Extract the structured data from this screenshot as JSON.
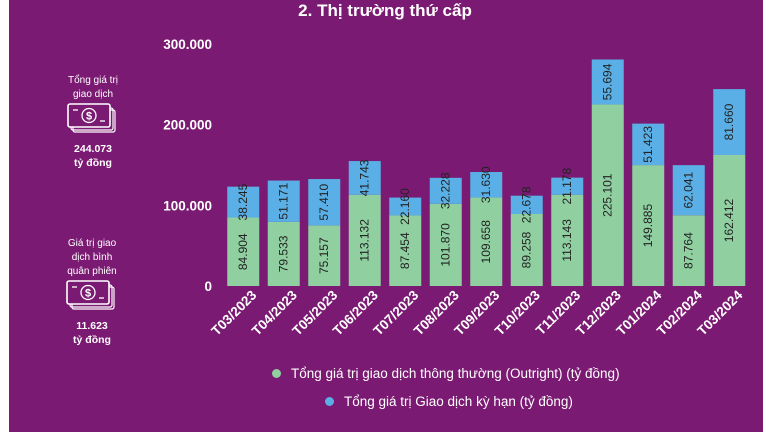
{
  "title": "2. Thị trường thứ cấp",
  "side_stats": [
    {
      "label_lines": [
        "Tổng giá trị",
        "giao dịch"
      ],
      "value": "244.073",
      "unit": "tỷ đồng",
      "icon": "money-icon"
    },
    {
      "label_lines": [
        "Giá trị giao",
        "dịch bình",
        "quân phiên"
      ],
      "value": "11.623",
      "unit": "tỷ đồng",
      "icon": "money-icon"
    }
  ],
  "colors": {
    "background": "#7b1a72",
    "outright": "#8fcfa0",
    "forward": "#5ab0e6"
  },
  "chart_data": {
    "type": "bar",
    "stacked": true,
    "categories": [
      "T03/2023",
      "T04/2023",
      "T05/2023",
      "T06/2023",
      "T07/2023",
      "T08/2023",
      "T09/2023",
      "T10/2023",
      "T11/2023",
      "T12/2023",
      "T01/2024",
      "T02/2024",
      "T03/2024"
    ],
    "series": [
      {
        "name": "Tổng giá trị giao dịch thông thường (Outright) (tỷ đồng)",
        "values": [
          84904,
          79533,
          75157,
          113132,
          87454,
          101870,
          109658,
          89258,
          113143,
          225101,
          149885,
          87764,
          162412
        ],
        "labels": [
          "84.904",
          "79.533",
          "75.157",
          "113.132",
          "87.454",
          "101.870",
          "109.658",
          "89.258",
          "113.143",
          "225.101",
          "149.885",
          "87.764",
          "162.412"
        ]
      },
      {
        "name": "Tổng giá trị Giao dịch kỳ hạn (tỷ đồng)",
        "values": [
          38245,
          51171,
          57410,
          41743,
          22160,
          32228,
          31630,
          22678,
          21178,
          55694,
          51423,
          62041,
          81660
        ],
        "labels": [
          "38.245",
          "51.171",
          "57.410",
          "41.743",
          "22.160",
          "32.228",
          "31.630",
          "22.678",
          "21.178",
          "55.694",
          "51.423",
          "62.041",
          "81.660"
        ]
      }
    ],
    "ylim": [
      0,
      300000
    ],
    "yticks": [
      0,
      100000,
      200000,
      300000
    ],
    "ytick_labels": [
      "0",
      "100.000",
      "200.000",
      "300.000"
    ],
    "legend": [
      "Tổng giá trị giao dịch thông thường (Outright) (tỷ đồng)",
      "Tổng giá trị Giao dịch kỳ hạn (tỷ đồng)"
    ],
    "legend_position": "bottom",
    "title": "",
    "xlabel": "",
    "ylabel": ""
  }
}
